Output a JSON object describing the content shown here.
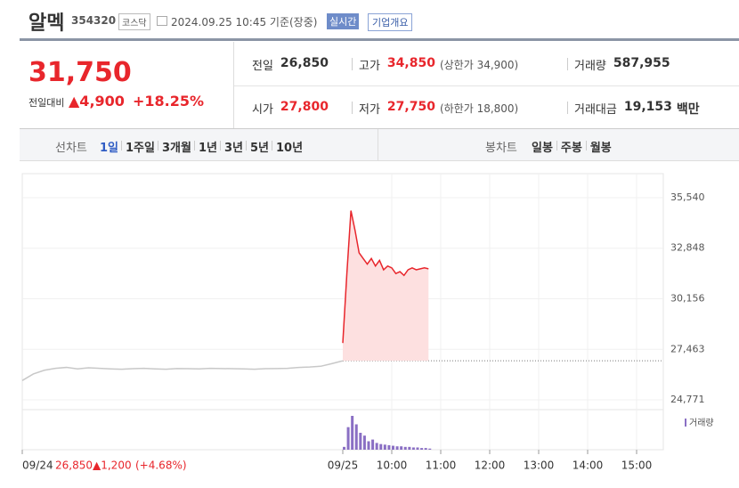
{
  "header": {
    "name": "알멕",
    "code": "354320",
    "market": "코스닥",
    "timestamp": "2024.09.25 10:45 기준(장중)",
    "realtime": "실시간",
    "company_button": "기업개요"
  },
  "quote": {
    "price": "31,750",
    "change_label": "전일대비",
    "change": "▲4,900",
    "rate": "+18.25%",
    "rows": [
      [
        {
          "label": "전일",
          "value": "26,850"
        },
        {
          "label": "고가",
          "value": "34,850",
          "note": "(상한가 34,900)"
        },
        {
          "label": "거래량",
          "value": "587,955"
        }
      ],
      [
        {
          "label": "시가",
          "value": "27,800"
        },
        {
          "label": "저가",
          "value": "27,750",
          "note": "(하한가 18,800)"
        },
        {
          "label": "거래대금",
          "value": "19,153",
          "unit": "백만"
        }
      ]
    ]
  },
  "tabs": {
    "line_label": "선차트",
    "line": [
      "1일",
      "1주일",
      "3개월",
      "1년",
      "3년",
      "5년",
      "10년"
    ],
    "candle_label": "봉차트",
    "candle": [
      "일봉",
      "주봉",
      "월봉"
    ]
  },
  "chart_data": {
    "type": "line",
    "color": "#e8262c",
    "prev_color": "#c8c8c8",
    "area_color": "#fde0e0",
    "volume_color": "#8a6fc4",
    "ylim": [
      24250,
      36820
    ],
    "yticks": [
      {
        "value": 35540,
        "label": "35,540"
      },
      {
        "value": 32848,
        "label": "32,848"
      },
      {
        "value": 30156,
        "label": "30,156"
      },
      {
        "value": 27463,
        "label": "27,463"
      },
      {
        "value": 24771,
        "label": "24,771"
      }
    ],
    "baseline": 26850,
    "prev_day": [
      25800,
      26150,
      26350,
      26450,
      26500,
      26420,
      26480,
      26450,
      26420,
      26400,
      26430,
      26450,
      26420,
      26400,
      26440,
      26430,
      26420,
      26450,
      26440,
      26430,
      26420,
      26400,
      26430,
      26440,
      26450,
      26500,
      26520,
      26560,
      26700,
      26850
    ],
    "x": [
      "09:00",
      "09:05",
      "09:10",
      "09:15",
      "09:20",
      "09:25",
      "09:30",
      "09:35",
      "09:40",
      "09:45",
      "09:50",
      "09:55",
      "10:00",
      "10:05",
      "10:10",
      "10:15",
      "10:20",
      "10:25",
      "10:30",
      "10:35",
      "10:40",
      "10:45"
    ],
    "values": [
      27800,
      31500,
      34850,
      33800,
      32600,
      32300,
      32000,
      32300,
      31900,
      32200,
      31700,
      31900,
      31800,
      31500,
      31600,
      31400,
      31700,
      31800,
      31700,
      31750,
      31800,
      31750
    ],
    "volume_label": "거래량",
    "volume": [
      5000,
      40000,
      60000,
      45000,
      30000,
      25000,
      15000,
      18000,
      12000,
      10000,
      9000,
      8000,
      7000,
      6000,
      6000,
      5000,
      5000,
      4000,
      4000,
      3000,
      3000,
      2000
    ],
    "xticks": [
      "09/24",
      "09/25",
      "10:00",
      "11:00",
      "12:00",
      "13:00",
      "14:00",
      "15:00"
    ],
    "footer": {
      "date": "09/24",
      "price": "26,850",
      "change": "▲1,200",
      "rate": "(+4.68%)"
    }
  }
}
